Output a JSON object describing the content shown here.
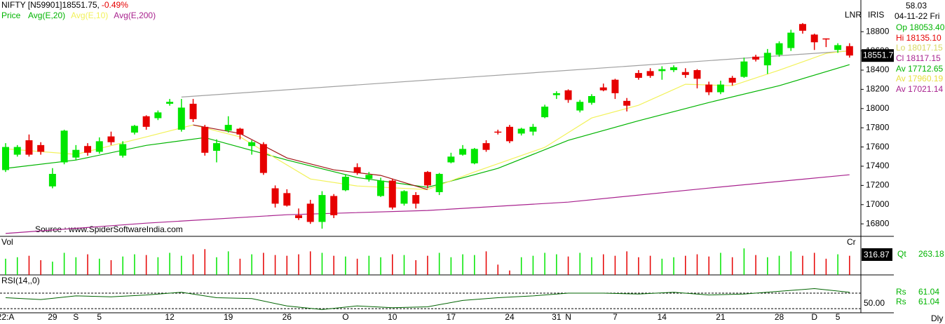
{
  "chart_data": {
    "type": "candlestick",
    "title": "NIFTY [N59901]18551.75,",
    "change": "-0.49%",
    "price_label": "Price",
    "source": "Source : www.SpiderSoftwareIndia.com",
    "last_price_label": "18551.7",
    "up_color": "#00e600",
    "down_color": "#e60000",
    "categories": [
      "22:A",
      null,
      null,
      null,
      "29",
      null,
      "S",
      null,
      "5",
      null,
      null,
      null,
      null,
      null,
      "12",
      null,
      null,
      null,
      null,
      "19",
      null,
      null,
      null,
      null,
      "26",
      null,
      null,
      null,
      null,
      "O",
      null,
      null,
      null,
      "10",
      null,
      null,
      null,
      null,
      "17",
      null,
      null,
      null,
      null,
      "24",
      null,
      null,
      null,
      "31",
      "N",
      null,
      null,
      null,
      "7",
      null,
      null,
      null,
      "14",
      null,
      null,
      null,
      null,
      "21",
      null,
      null,
      null,
      null,
      "28",
      null,
      null,
      "D",
      null,
      "5",
      null
    ],
    "open": [
      17360,
      17520,
      17670,
      17620,
      17190,
      17440,
      17490,
      17610,
      17550,
      17710,
      17510,
      17750,
      17920,
      17900,
      18050,
      17780,
      18050,
      17810,
      17560,
      17770,
      17790,
      17610,
      17630,
      17170,
      17120,
      16890,
      17010,
      16820,
      17090,
      17150,
      17390,
      17270,
      17090,
      17250,
      17010,
      17100,
      17340,
      17130,
      17440,
      17520,
      17430,
      17640,
      17760,
      17810,
      17740,
      17760,
      17910,
      18140,
      18190,
      17980,
      18060,
      18220,
      18300,
      18080,
      18370,
      18390,
      18390,
      18400,
      18380,
      18400,
      18250,
      18170,
      18320,
      18330,
      18540,
      18450,
      18560,
      18630,
      18880,
      18770,
      18730,
      18610,
      18650
    ],
    "high": [
      17640,
      17620,
      17730,
      17650,
      17380,
      17780,
      17620,
      17640,
      17700,
      17760,
      17660,
      17830,
      17930,
      17980,
      18100,
      18100,
      18100,
      17830,
      17680,
      17920,
      17800,
      17670,
      17650,
      17200,
      17160,
      16960,
      17050,
      17140,
      17110,
      17310,
      17430,
      17340,
      17280,
      17270,
      17150,
      17130,
      17350,
      17330,
      17540,
      17620,
      17590,
      17670,
      17780,
      17830,
      17800,
      17840,
      18040,
      18180,
      18200,
      18090,
      18150,
      18260,
      18310,
      18110,
      18400,
      18420,
      18440,
      18450,
      18420,
      18410,
      18280,
      18290,
      18340,
      18530,
      18560,
      18620,
      18700,
      18820,
      18890,
      18780,
      18730,
      18680,
      18680
    ],
    "low": [
      17340,
      17500,
      17500,
      17520,
      17170,
      17420,
      17460,
      17510,
      17530,
      17620,
      17490,
      17730,
      17780,
      17880,
      18030,
      17760,
      17860,
      17510,
      17440,
      17750,
      17680,
      17520,
      17310,
      16970,
      16980,
      16840,
      16800,
      16750,
      16860,
      17140,
      17310,
      17240,
      17080,
      16950,
      16990,
      16960,
      17170,
      17100,
      17430,
      17510,
      17420,
      17550,
      17730,
      17640,
      17720,
      17720,
      17900,
      18100,
      18060,
      17960,
      18040,
      18180,
      18100,
      17970,
      18300,
      18320,
      18300,
      18380,
      18320,
      18210,
      18140,
      18150,
      18240,
      18320,
      18490,
      18360,
      18540,
      18600,
      18780,
      18610,
      18640,
      18580,
      18530
    ],
    "close": [
      17600,
      17600,
      17520,
      17550,
      17320,
      17770,
      17570,
      17540,
      17660,
      17650,
      17630,
      17820,
      17810,
      17960,
      18070,
      18010,
      17890,
      17540,
      17640,
      17830,
      17730,
      17650,
      17330,
      17010,
      16990,
      16860,
      16820,
      17100,
      16890,
      17290,
      17330,
      17310,
      17250,
      16970,
      17140,
      17010,
      17200,
      17320,
      17500,
      17580,
      17580,
      17570,
      17750,
      17660,
      17790,
      17810,
      18020,
      18160,
      18090,
      18070,
      18130,
      18190,
      18160,
      18030,
      18320,
      18340,
      18410,
      18430,
      18350,
      18310,
      18170,
      18250,
      18270,
      18490,
      18510,
      18580,
      18680,
      18790,
      18810,
      18690,
      18720,
      18660,
      18552
    ],
    "series": [
      {
        "name": "Avg(E,20)",
        "color": "#00b400",
        "x": [
          0,
          6,
          12,
          17,
          24,
          30,
          36,
          42,
          48,
          54,
          60,
          66,
          72
        ],
        "values": [
          17377,
          17464,
          17617,
          17698,
          17464,
          17282,
          17180,
          17377,
          17669,
          17873,
          18063,
          18238,
          18457
        ]
      },
      {
        "name": "Avg(E,10)",
        "color": "#f2f25a",
        "x": [
          0,
          6,
          12,
          16,
          20,
          26,
          30,
          36,
          40,
          46,
          50,
          54,
          58,
          62,
          66,
          70,
          72
        ],
        "values": [
          17581,
          17523,
          17705,
          17829,
          17705,
          17267,
          17194,
          17157,
          17340,
          17596,
          17902,
          18034,
          18253,
          18238,
          18399,
          18574,
          18603
        ]
      },
      {
        "name": "Avg(E,200)",
        "color": "#a8228e",
        "x": [
          0,
          12,
          24,
          36,
          48,
          60,
          72
        ],
        "values": [
          16700,
          16807,
          16895,
          16939,
          17026,
          17172,
          17311
        ]
      },
      {
        "color": "#a01818",
        "x": [
          16,
          20,
          24,
          28,
          32,
          36
        ],
        "values": [
          17829,
          17741,
          17486,
          17362,
          17304,
          17157
        ]
      }
    ],
    "trendline": {
      "color": "#a0a0a0",
      "x": [
        15,
        72
      ],
      "values": [
        18120,
        18600
      ]
    },
    "ylim": [
      16670,
      19130
    ],
    "yticks": [
      16800,
      17000,
      17200,
      17400,
      17600,
      17800,
      18000,
      18200,
      18400,
      18600,
      18800
    ],
    "info": {
      "lnr": "LNR",
      "iris": "IRIS",
      "value": "58.03",
      "date": "04-11-22 Fri",
      "open": "Op 18053.40",
      "high": "Hi 18135.10",
      "low": "Lo 18017.15",
      "close": "Cl 18117.15",
      "averages": [
        "Av 17712.65",
        "Av 17960.19",
        "Av 17021.14"
      ]
    },
    "volume": {
      "label": "Vol",
      "unit": "Cr",
      "last_label": "316.87",
      "qt_label": "Qt",
      "qt_value": "263.18",
      "ylim": [
        0,
        40
      ],
      "values": [
        22,
        24,
        26,
        20,
        18,
        30,
        24,
        28,
        22,
        20,
        25,
        28,
        27,
        24,
        30,
        26,
        28,
        35,
        24,
        32,
        22,
        28,
        30,
        27,
        26,
        28,
        32,
        30,
        26,
        25,
        22,
        26,
        24,
        28,
        27,
        20,
        26,
        30,
        24,
        28,
        27,
        32,
        14,
        6,
        24,
        26,
        30,
        28,
        25,
        30,
        24,
        28,
        26,
        32,
        24,
        26,
        22,
        24,
        26,
        28,
        25,
        30,
        24,
        36,
        27,
        24,
        26,
        32,
        26,
        30,
        22,
        28,
        26
      ]
    },
    "rsi": {
      "label": "RSI(14,,0)",
      "color": "#006400",
      "ylim": [
        38.5,
        76.9
      ],
      "levels": [
        60,
        43
      ],
      "yticks": [
        {
          "value": 50,
          "label": "50.00"
        }
      ],
      "x": [
        0,
        3,
        6,
        9,
        12,
        15,
        18,
        21,
        24,
        27,
        30,
        33,
        36,
        39,
        42,
        45,
        48,
        51,
        54,
        57,
        60,
        63,
        66,
        69,
        72
      ],
      "values": [
        55,
        53,
        57,
        56,
        58,
        61,
        55,
        54,
        46,
        42,
        46,
        44,
        45,
        52,
        55,
        57,
        60,
        60,
        59,
        61,
        58,
        59,
        62,
        65,
        61
      ],
      "rs_labels": [
        "Rs",
        "Rs"
      ],
      "rs_values": [
        "61.04",
        "61.04"
      ]
    },
    "period_label": "Dly"
  }
}
